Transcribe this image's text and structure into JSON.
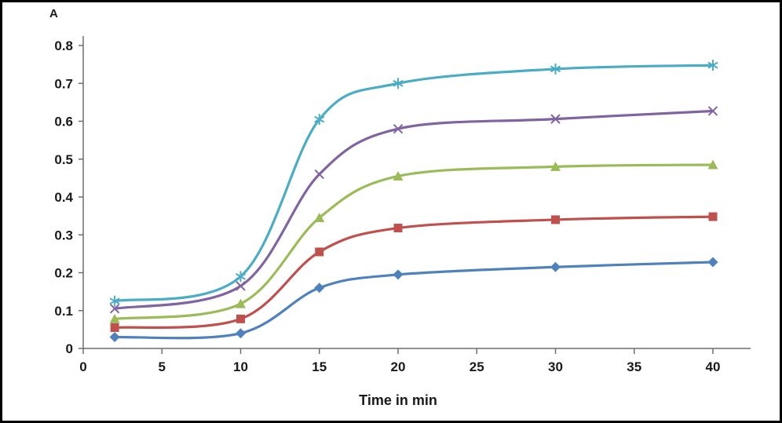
{
  "frame": {
    "border_color": "#000000",
    "background": "#ffffff"
  },
  "chart_data": {
    "type": "line",
    "title": "A",
    "xlabel": "Time in min",
    "ylabel": "",
    "line_style": "smooth",
    "grid": false,
    "legend": "none",
    "xlim": [
      0,
      40
    ],
    "ylim": [
      0,
      0.8
    ],
    "xticks": [
      0,
      5,
      10,
      15,
      20,
      25,
      30,
      35,
      40
    ],
    "xtick_labels": [
      "0",
      "5",
      "10",
      "15",
      "20",
      "25",
      "30",
      "35",
      "40"
    ],
    "yticks": [
      0,
      0.1,
      0.2,
      0.3,
      0.4,
      0.5,
      0.6,
      0.7,
      0.8
    ],
    "ytick_labels": [
      "0",
      "0.1",
      "0.2",
      "0.3",
      "0.4",
      "0.5",
      "0.6",
      "0.7",
      "0.8"
    ],
    "x": [
      2,
      10,
      15,
      20,
      30,
      40
    ],
    "series": [
      {
        "name": "series-1-diamond",
        "marker": "diamond",
        "color": "#4F81BD",
        "values": [
          0.03,
          0.04,
          0.16,
          0.195,
          0.215,
          0.228
        ]
      },
      {
        "name": "series-2-square",
        "marker": "square",
        "color": "#C0504D",
        "values": [
          0.055,
          0.078,
          0.255,
          0.318,
          0.34,
          0.348
        ]
      },
      {
        "name": "series-3-triangle",
        "marker": "triangle",
        "color": "#9BBB59",
        "values": [
          0.078,
          0.118,
          0.345,
          0.455,
          0.48,
          0.485
        ]
      },
      {
        "name": "series-4-x",
        "marker": "x",
        "color": "#8064A2",
        "values": [
          0.105,
          0.165,
          0.46,
          0.58,
          0.606,
          0.627
        ]
      },
      {
        "name": "series-5-asterisk",
        "marker": "asterisk",
        "color": "#4BACC6",
        "values": [
          0.125,
          0.19,
          0.605,
          0.7,
          0.738,
          0.748
        ]
      }
    ],
    "text_color": "#1a1a1a",
    "axis_color": "#6e6e6e"
  }
}
